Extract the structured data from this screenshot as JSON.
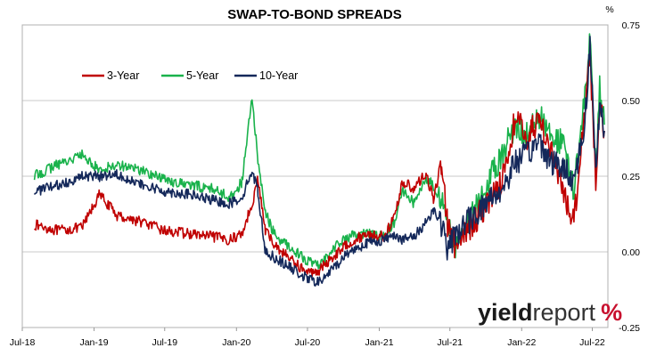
{
  "chart_data": {
    "type": "line",
    "title": "SWAP-TO-BOND SPREADS",
    "y_unit": "%",
    "ylim": [
      -0.25,
      0.75
    ],
    "y_ticks": [
      "0.75",
      "0.50",
      "0.25",
      "0.00",
      "-0.25"
    ],
    "y_tick_values": [
      0.75,
      0.5,
      0.25,
      0.0,
      -0.25
    ],
    "x_tick_labels": [
      "Jul-18",
      "Jan-19",
      "Jul-19",
      "Jan-20",
      "Jul-20",
      "Jan-21",
      "Jul-21",
      "Jan-22",
      "Jul-22"
    ],
    "x_tick_dates": [
      "2018-07-01",
      "2019-01-01",
      "2019-07-01",
      "2020-01-01",
      "2020-07-01",
      "2021-01-01",
      "2021-07-01",
      "2022-01-01",
      "2022-07-01"
    ],
    "xlim": [
      "2018-07-01",
      "2022-08-10"
    ],
    "grid": "horizontal",
    "legend_position": "top-left",
    "series": [
      {
        "name": "3-Year",
        "color": "#c00000",
        "x": [
          "2018-08-01",
          "2018-10-01",
          "2018-12-01",
          "2019-01-15",
          "2019-03-01",
          "2019-05-01",
          "2019-07-01",
          "2019-09-01",
          "2019-11-01",
          "2019-12-15",
          "2020-01-15",
          "2020-02-10",
          "2020-02-25",
          "2020-03-15",
          "2020-04-10",
          "2020-05-15",
          "2020-07-01",
          "2020-08-01",
          "2020-09-01",
          "2020-10-15",
          "2020-12-01",
          "2021-01-15",
          "2021-02-10",
          "2021-03-01",
          "2021-04-01",
          "2021-05-01",
          "2021-05-20",
          "2021-06-10",
          "2021-06-25",
          "2021-07-15",
          "2021-09-01",
          "2021-10-15",
          "2021-11-15",
          "2021-12-15",
          "2022-01-15",
          "2022-02-15",
          "2022-03-15",
          "2022-04-15",
          "2022-05-15",
          "2022-06-10",
          "2022-06-25",
          "2022-07-10",
          "2022-07-20",
          "2022-08-01"
        ],
        "values": [
          0.09,
          0.07,
          0.08,
          0.19,
          0.12,
          0.1,
          0.07,
          0.06,
          0.05,
          0.04,
          0.06,
          0.16,
          0.24,
          0.07,
          0.02,
          -0.02,
          -0.07,
          -0.06,
          -0.02,
          0.03,
          0.06,
          0.05,
          0.12,
          0.23,
          0.21,
          0.26,
          0.17,
          0.3,
          0.09,
          0.01,
          0.1,
          0.18,
          0.25,
          0.44,
          0.38,
          0.44,
          0.35,
          0.2,
          0.1,
          0.45,
          0.66,
          0.22,
          0.5,
          0.4
        ]
      },
      {
        "name": "5-Year",
        "color": "#19b24b",
        "x": [
          "2018-08-01",
          "2018-10-01",
          "2018-12-01",
          "2019-01-15",
          "2019-03-01",
          "2019-05-01",
          "2019-07-01",
          "2019-09-01",
          "2019-11-01",
          "2019-12-15",
          "2020-01-15",
          "2020-02-10",
          "2020-02-25",
          "2020-03-15",
          "2020-04-10",
          "2020-05-15",
          "2020-07-01",
          "2020-08-01",
          "2020-09-01",
          "2020-10-15",
          "2020-12-01",
          "2021-01-15",
          "2021-02-10",
          "2021-03-01",
          "2021-04-01",
          "2021-05-01",
          "2021-05-20",
          "2021-06-10",
          "2021-06-25",
          "2021-07-15",
          "2021-09-01",
          "2021-10-15",
          "2021-11-15",
          "2021-12-15",
          "2022-01-15",
          "2022-02-15",
          "2022-03-15",
          "2022-04-15",
          "2022-05-15",
          "2022-06-10",
          "2022-06-25",
          "2022-07-10",
          "2022-07-20",
          "2022-08-01"
        ],
        "values": [
          0.25,
          0.29,
          0.32,
          0.27,
          0.29,
          0.27,
          0.24,
          0.22,
          0.21,
          0.18,
          0.23,
          0.51,
          0.3,
          0.13,
          0.05,
          0.02,
          -0.03,
          -0.05,
          0.01,
          0.05,
          0.06,
          0.05,
          0.1,
          0.2,
          0.16,
          0.24,
          0.22,
          0.17,
          0.08,
          0.02,
          0.13,
          0.25,
          0.33,
          0.42,
          0.39,
          0.45,
          0.38,
          0.36,
          0.2,
          0.5,
          0.7,
          0.27,
          0.54,
          0.42
        ]
      },
      {
        "name": "10-Year",
        "color": "#14285a",
        "x": [
          "2018-08-01",
          "2018-10-01",
          "2018-12-01",
          "2019-01-15",
          "2019-03-01",
          "2019-05-01",
          "2019-07-01",
          "2019-09-01",
          "2019-11-01",
          "2019-12-15",
          "2020-01-15",
          "2020-02-10",
          "2020-02-25",
          "2020-03-15",
          "2020-04-10",
          "2020-05-15",
          "2020-07-01",
          "2020-08-01",
          "2020-09-01",
          "2020-10-15",
          "2020-12-01",
          "2021-01-15",
          "2021-02-10",
          "2021-03-01",
          "2021-04-01",
          "2021-05-01",
          "2021-05-20",
          "2021-06-10",
          "2021-06-25",
          "2021-07-15",
          "2021-09-01",
          "2021-10-15",
          "2021-11-15",
          "2021-12-15",
          "2022-01-15",
          "2022-02-15",
          "2022-03-15",
          "2022-04-15",
          "2022-05-15",
          "2022-06-10",
          "2022-06-25",
          "2022-07-10",
          "2022-07-20",
          "2022-08-01"
        ],
        "values": [
          0.2,
          0.22,
          0.25,
          0.25,
          0.26,
          0.22,
          0.2,
          0.19,
          0.17,
          0.16,
          0.18,
          0.27,
          0.2,
          0.0,
          -0.02,
          -0.05,
          -0.09,
          -0.1,
          -0.06,
          0.0,
          0.03,
          0.04,
          0.06,
          0.04,
          0.05,
          0.1,
          0.14,
          0.09,
          0.0,
          0.06,
          0.12,
          0.18,
          0.21,
          0.3,
          0.32,
          0.37,
          0.3,
          0.28,
          0.24,
          0.4,
          0.68,
          0.28,
          0.48,
          0.4
        ]
      }
    ]
  },
  "brand": {
    "main": "yield",
    "sub": "report",
    "pct": "%",
    "pct_color": "#c8102e"
  }
}
